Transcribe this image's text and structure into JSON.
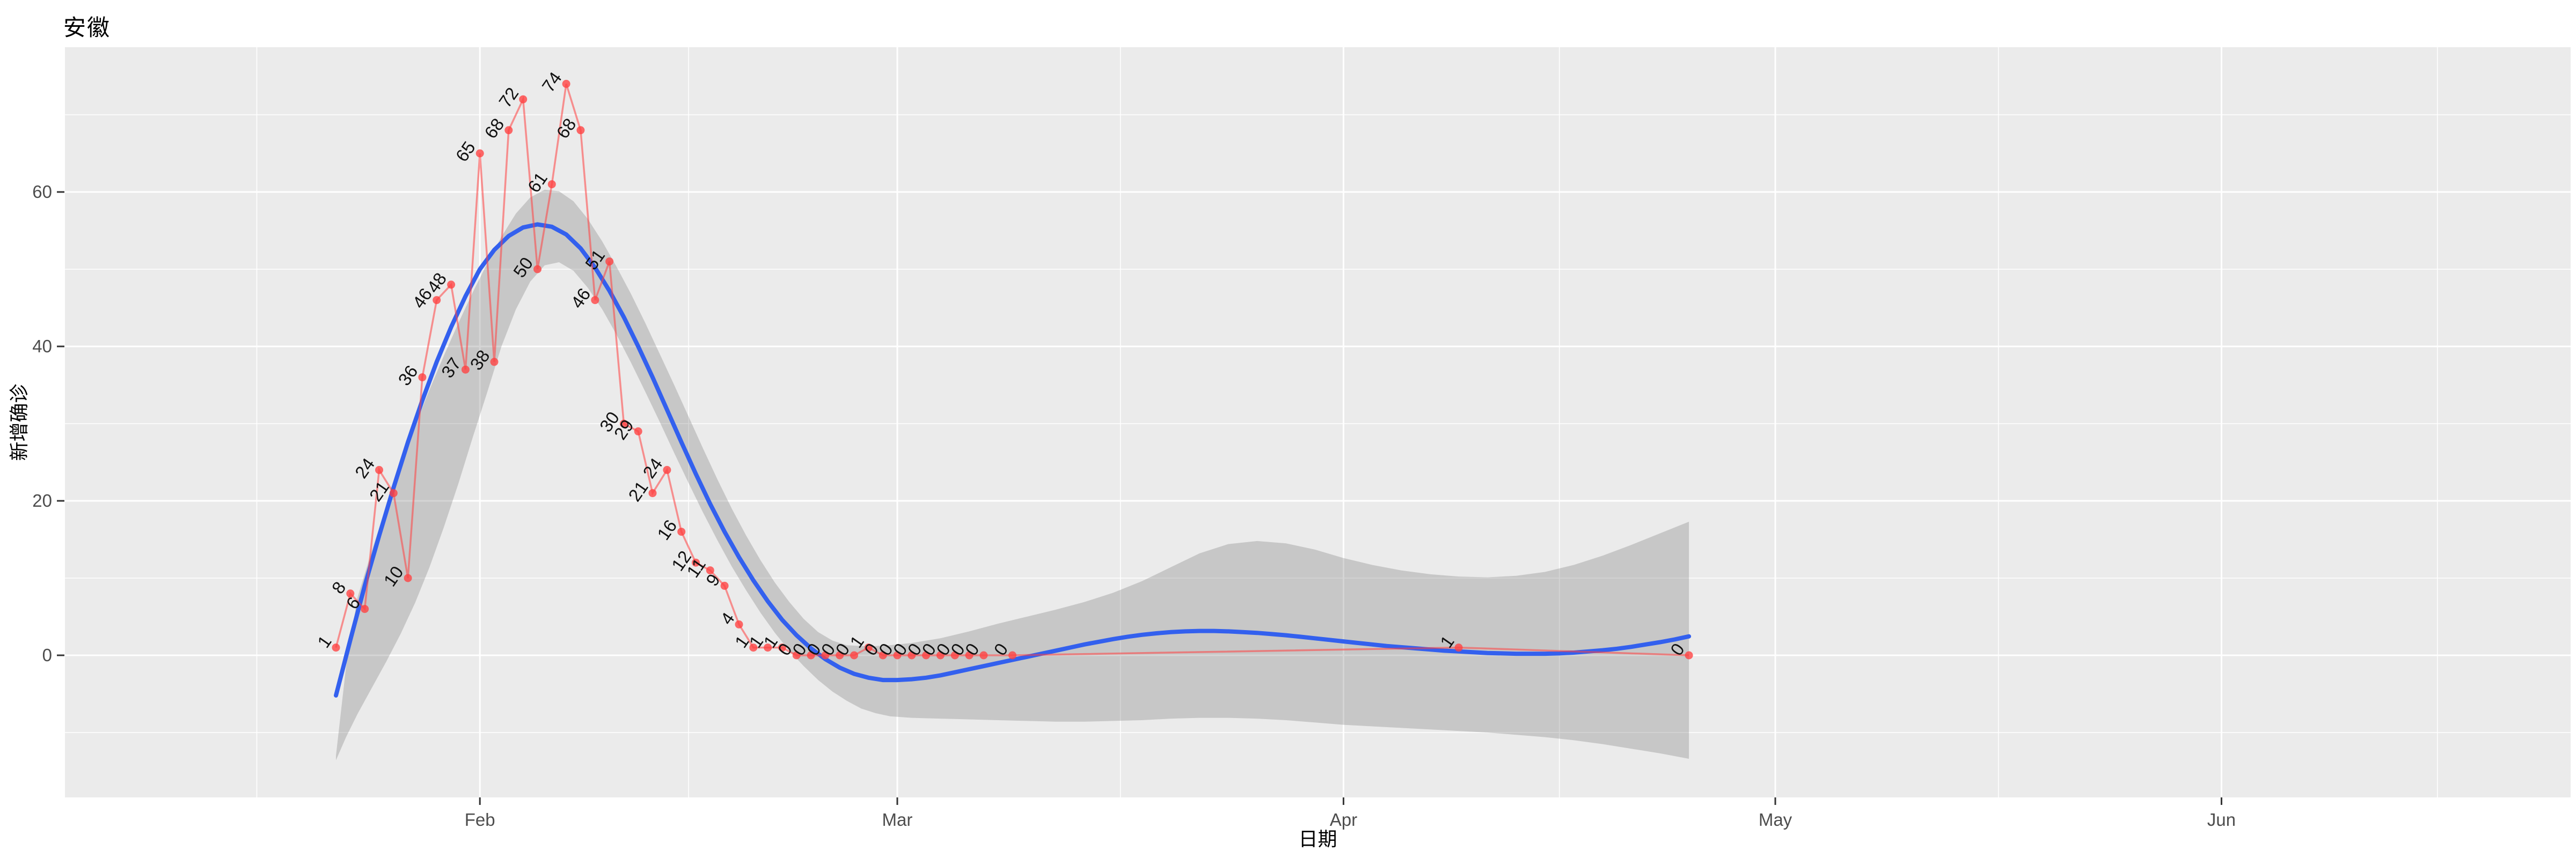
{
  "title": "安徽",
  "axes": {
    "x": {
      "title": "日期",
      "ticks": [
        {
          "label": "Feb",
          "date": "2020-02-01"
        },
        {
          "label": "Mar",
          "date": "2020-03-01"
        },
        {
          "label": "Apr",
          "date": "2020-04-01"
        },
        {
          "label": "May",
          "date": "2020-05-01"
        },
        {
          "label": "Jun",
          "date": "2020-06-01"
        }
      ]
    },
    "y": {
      "title": "新增确诊",
      "ticks": [
        {
          "label": "0",
          "value": 0
        },
        {
          "label": "20",
          "value": 20
        },
        {
          "label": "40",
          "value": 40
        },
        {
          "label": "60",
          "value": 60
        }
      ],
      "minor_values": [
        -10,
        10,
        30,
        50,
        70
      ]
    }
  },
  "colors": {
    "background": "#FFFFFF",
    "panel": "#EBEBEB",
    "grid": "#FFFFFF",
    "ribbon": "#757575",
    "smooth_line": "#3360EE",
    "data_red": "#FF4040",
    "tick_mark": "#333333",
    "tick_text": "#4D4D4D",
    "point_label_text": "#111111",
    "axis_title_text": "#000000",
    "title_text": "#000000"
  },
  "chart_data": {
    "type": "line",
    "subtype": "scatter+line+loess_smooth+confidence_ribbon",
    "title": "安徽",
    "xlabel": "日期",
    "ylabel": "新增确诊",
    "x_domain_start": "2020-01-22",
    "x_axis_months_shown": [
      "Feb",
      "Mar",
      "Apr",
      "May",
      "Jun"
    ],
    "ylim_panel": [
      -18.4,
      78.8
    ],
    "y_major_gridlines": [
      0,
      20,
      40,
      60
    ],
    "y_minor_gridlines": [
      -10,
      10,
      30,
      50,
      70
    ],
    "grid": true,
    "legend": "none",
    "series_red_points": [
      {
        "date": "2020-01-22",
        "value": 1,
        "label": "1"
      },
      {
        "date": "2020-01-23",
        "value": 8,
        "label": "8"
      },
      {
        "date": "2020-01-24",
        "value": 6,
        "label": "6"
      },
      {
        "date": "2020-01-25",
        "value": 24,
        "label": "24"
      },
      {
        "date": "2020-01-26",
        "value": 21,
        "label": "21"
      },
      {
        "date": "2020-01-27",
        "value": 10,
        "label": "10"
      },
      {
        "date": "2020-01-28",
        "value": 36,
        "label": "36"
      },
      {
        "date": "2020-01-29",
        "value": 46,
        "label": "46"
      },
      {
        "date": "2020-01-30",
        "value": 48,
        "label": "48"
      },
      {
        "date": "2020-01-31",
        "value": 37,
        "label": "37"
      },
      {
        "date": "2020-02-01",
        "value": 65,
        "label": "65"
      },
      {
        "date": "2020-02-02",
        "value": 38,
        "label": "38"
      },
      {
        "date": "2020-02-03",
        "value": 68,
        "label": "68"
      },
      {
        "date": "2020-02-04",
        "value": 72,
        "label": "72"
      },
      {
        "date": "2020-02-05",
        "value": 50,
        "label": "50"
      },
      {
        "date": "2020-02-06",
        "value": 61,
        "label": "61"
      },
      {
        "date": "2020-02-07",
        "value": 74,
        "label": "74"
      },
      {
        "date": "2020-02-08",
        "value": 68,
        "label": "68"
      },
      {
        "date": "2020-02-09",
        "value": 46,
        "label": "46"
      },
      {
        "date": "2020-02-10",
        "value": 51,
        "label": "51"
      },
      {
        "date": "2020-02-11",
        "value": 30,
        "label": "30"
      },
      {
        "date": "2020-02-12",
        "value": 29,
        "label": "29"
      },
      {
        "date": "2020-02-13",
        "value": 21,
        "label": "21"
      },
      {
        "date": "2020-02-14",
        "value": 24,
        "label": "24"
      },
      {
        "date": "2020-02-15",
        "value": 16,
        "label": "16"
      },
      {
        "date": "2020-02-16",
        "value": 12,
        "label": "12"
      },
      {
        "date": "2020-02-17",
        "value": 11,
        "label": "11"
      },
      {
        "date": "2020-02-18",
        "value": 9,
        "label": "9"
      },
      {
        "date": "2020-02-19",
        "value": 4,
        "label": "4"
      },
      {
        "date": "2020-02-20",
        "value": 1,
        "label": "1"
      },
      {
        "date": "2020-02-21",
        "value": 1,
        "label": "1"
      },
      {
        "date": "2020-02-22",
        "value": 1,
        "label": "1"
      },
      {
        "date": "2020-02-23",
        "value": 0,
        "label": "0"
      },
      {
        "date": "2020-02-24",
        "value": 0,
        "label": "0"
      },
      {
        "date": "2020-02-25",
        "value": 0,
        "label": "0"
      },
      {
        "date": "2020-02-26",
        "value": 0,
        "label": "0"
      },
      {
        "date": "2020-02-27",
        "value": 0,
        "label": "0"
      },
      {
        "date": "2020-02-28",
        "value": 1,
        "label": "1"
      },
      {
        "date": "2020-02-29",
        "value": 0,
        "label": "0"
      },
      {
        "date": "2020-03-01",
        "value": 0,
        "label": "0"
      },
      {
        "date": "2020-03-02",
        "value": 0,
        "label": "0"
      },
      {
        "date": "2020-03-03",
        "value": 0,
        "label": "0"
      },
      {
        "date": "2020-03-04",
        "value": 0,
        "label": "0"
      },
      {
        "date": "2020-03-05",
        "value": 0,
        "label": "0"
      },
      {
        "date": "2020-03-06",
        "value": 0,
        "label": "0"
      },
      {
        "date": "2020-03-07",
        "value": 0,
        "label": "0"
      },
      {
        "date": "2020-03-09",
        "value": 0,
        "label": "0"
      },
      {
        "date": "2020-04-09",
        "value": 1,
        "label": "1"
      },
      {
        "date": "2020-04-25",
        "value": 0,
        "label": "0"
      }
    ],
    "smooth_line_days_values": [
      [
        0,
        -5.2
      ],
      [
        1,
        2
      ],
      [
        2,
        9
      ],
      [
        3,
        15.5
      ],
      [
        4,
        21.7
      ],
      [
        5,
        27.6
      ],
      [
        6,
        33
      ],
      [
        7,
        38
      ],
      [
        8,
        42.5
      ],
      [
        9,
        46.5
      ],
      [
        10,
        50
      ],
      [
        11,
        52.5
      ],
      [
        12,
        54.3
      ],
      [
        13,
        55.4
      ],
      [
        14,
        55.8
      ],
      [
        15,
        55.5
      ],
      [
        16,
        54.5
      ],
      [
        17,
        52.7
      ],
      [
        18,
        50.2
      ],
      [
        19,
        47.2
      ],
      [
        20,
        43.8
      ],
      [
        21,
        40
      ],
      [
        22,
        36
      ],
      [
        23,
        31.8
      ],
      [
        24,
        27.6
      ],
      [
        25,
        23.5
      ],
      [
        26,
        19.6
      ],
      [
        27,
        16
      ],
      [
        28,
        12.7
      ],
      [
        29,
        9.7
      ],
      [
        30,
        7
      ],
      [
        31,
        4.6
      ],
      [
        32,
        2.6
      ],
      [
        33,
        0.9
      ],
      [
        34,
        -0.5
      ],
      [
        35,
        -1.6
      ],
      [
        36,
        -2.4
      ],
      [
        37,
        -2.9
      ],
      [
        38,
        -3.2
      ],
      [
        39,
        -3.2
      ],
      [
        40,
        -3.1
      ],
      [
        41,
        -2.9
      ],
      [
        42,
        -2.6
      ],
      [
        43,
        -2.2
      ],
      [
        44,
        -1.8
      ],
      [
        45,
        -1.4
      ],
      [
        46,
        -1
      ],
      [
        47,
        -0.6
      ],
      [
        48,
        -0.2
      ],
      [
        49,
        0.2
      ],
      [
        50,
        0.6
      ],
      [
        51,
        1
      ],
      [
        52,
        1.4
      ],
      [
        53,
        1.75
      ],
      [
        54,
        2.1
      ],
      [
        55,
        2.4
      ],
      [
        56,
        2.65
      ],
      [
        57,
        2.85
      ],
      [
        58,
        3
      ],
      [
        59,
        3.1
      ],
      [
        60,
        3.15
      ],
      [
        61,
        3.15
      ],
      [
        62,
        3.1
      ],
      [
        63,
        3
      ],
      [
        64,
        2.9
      ],
      [
        65,
        2.75
      ],
      [
        66,
        2.6
      ],
      [
        67,
        2.4
      ],
      [
        68,
        2.2
      ],
      [
        69,
        2
      ],
      [
        70,
        1.8
      ],
      [
        71,
        1.6
      ],
      [
        72,
        1.4
      ],
      [
        73,
        1.2
      ],
      [
        74,
        1.05
      ],
      [
        75,
        0.9
      ],
      [
        76,
        0.75
      ],
      [
        77,
        0.6
      ],
      [
        78,
        0.5
      ],
      [
        79,
        0.4
      ],
      [
        80,
        0.3
      ],
      [
        81,
        0.25
      ],
      [
        82,
        0.2
      ],
      [
        83,
        0.2
      ],
      [
        84,
        0.2
      ],
      [
        85,
        0.25
      ],
      [
        86,
        0.35
      ],
      [
        87,
        0.5
      ],
      [
        88,
        0.65
      ],
      [
        89,
        0.85
      ],
      [
        90,
        1.1
      ],
      [
        91,
        1.4
      ],
      [
        92,
        1.7
      ],
      [
        93,
        2.05
      ],
      [
        94,
        2.45
      ]
    ],
    "ribbon_days_lo_hi": [
      [
        0,
        -13.6,
        -13.0
      ],
      [
        0.7,
        -10.6,
        -1.5
      ],
      [
        1.5,
        -7.6,
        7.5
      ],
      [
        2.5,
        -4.2,
        13.6
      ],
      [
        3.5,
        -0.8,
        19.3
      ],
      [
        4.5,
        2.8,
        24.6
      ],
      [
        5.5,
        6.8,
        29.7
      ],
      [
        6.5,
        11.4,
        34.4
      ],
      [
        7.5,
        16.6,
        38.8
      ],
      [
        8.5,
        22.2,
        43
      ],
      [
        9.5,
        28.2,
        47
      ],
      [
        10.5,
        34,
        50.7
      ],
      [
        11.5,
        40,
        54.2
      ],
      [
        12.5,
        44.8,
        57.2
      ],
      [
        13.5,
        48.4,
        59.3
      ],
      [
        14.5,
        50.5,
        60.3
      ],
      [
        15.5,
        50.9,
        60.1
      ],
      [
        16.5,
        49.8,
        58.8
      ],
      [
        17.5,
        47.6,
        56.5
      ],
      [
        18.5,
        44.8,
        53.6
      ],
      [
        19.5,
        41.5,
        50.3
      ],
      [
        20.5,
        37.9,
        46.8
      ],
      [
        21.5,
        34.1,
        43
      ],
      [
        22.5,
        30.2,
        39
      ],
      [
        23.5,
        26.2,
        35
      ],
      [
        24.5,
        22.3,
        30.9
      ],
      [
        25.5,
        18.5,
        26.8
      ],
      [
        26.5,
        14.9,
        22.8
      ],
      [
        27.5,
        11.5,
        19
      ],
      [
        28.5,
        8.4,
        15.5
      ],
      [
        29.5,
        5.5,
        12.3
      ],
      [
        30.5,
        2.9,
        9.4
      ],
      [
        31.5,
        0.6,
        6.9
      ],
      [
        32.5,
        -1.4,
        4.7
      ],
      [
        33.5,
        -3.2,
        3
      ],
      [
        34.5,
        -4.7,
        1.9
      ],
      [
        35.5,
        -5.9,
        1.3
      ],
      [
        36.5,
        -6.9,
        1.2
      ],
      [
        37.5,
        -7.5,
        1.2
      ],
      [
        38.5,
        -7.9,
        1.3
      ],
      [
        40,
        -8.1,
        1.6
      ],
      [
        42,
        -8.2,
        2.2
      ],
      [
        44,
        -8.3,
        3.1
      ],
      [
        46,
        -8.4,
        4.1
      ],
      [
        48,
        -8.5,
        5
      ],
      [
        50,
        -8.6,
        5.9
      ],
      [
        52,
        -8.6,
        6.9
      ],
      [
        54,
        -8.5,
        8.1
      ],
      [
        56,
        -8.4,
        9.6
      ],
      [
        58,
        -8.2,
        11.4
      ],
      [
        60,
        -8.1,
        13.2
      ],
      [
        62,
        -8.1,
        14.4
      ],
      [
        64,
        -8.2,
        14.8
      ],
      [
        66,
        -8.4,
        14.5
      ],
      [
        68,
        -8.7,
        13.7
      ],
      [
        70,
        -9,
        12.6
      ],
      [
        72,
        -9.2,
        11.7
      ],
      [
        74,
        -9.4,
        11
      ],
      [
        76,
        -9.6,
        10.5
      ],
      [
        78,
        -9.8,
        10.2
      ],
      [
        80,
        -10,
        10.1
      ],
      [
        82,
        -10.3,
        10.3
      ],
      [
        84,
        -10.6,
        10.8
      ],
      [
        86,
        -11,
        11.7
      ],
      [
        88,
        -11.5,
        12.9
      ],
      [
        90,
        -12.1,
        14.3
      ],
      [
        92,
        -12.7,
        15.8
      ],
      [
        94,
        -13.4,
        17.3
      ]
    ]
  }
}
